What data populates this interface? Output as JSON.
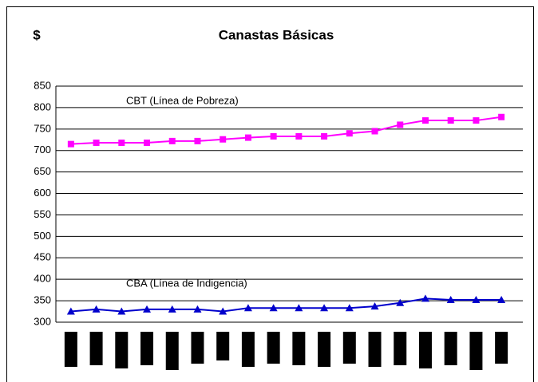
{
  "chart_data": {
    "type": "line",
    "title": "Canastas Básicas",
    "y_label": "$",
    "categories": [
      null,
      null,
      null,
      null,
      null,
      null,
      null,
      null,
      null,
      null,
      null,
      null,
      null,
      null,
      null,
      null,
      null,
      null
    ],
    "series": [
      {
        "name": "CBT (Línea de Pobreza)",
        "color": "#ff00ff",
        "marker": "square",
        "values": [
          715,
          718,
          718,
          718,
          722,
          722,
          726,
          730,
          733,
          733,
          733,
          740,
          745,
          760,
          770,
          770,
          770,
          778
        ]
      },
      {
        "name": "CBA (Línea de Indigencia)",
        "color": "#0000cc",
        "marker": "triangle",
        "values": [
          325,
          330,
          325,
          330,
          330,
          330,
          325,
          333,
          333,
          333,
          333,
          333,
          337,
          345,
          355,
          352,
          352,
          352
        ]
      }
    ],
    "ylim": [
      300,
      850
    ],
    "yticks": [
      300,
      350,
      400,
      450,
      500,
      550,
      600,
      650,
      700,
      750,
      800,
      850
    ],
    "grid": true
  }
}
